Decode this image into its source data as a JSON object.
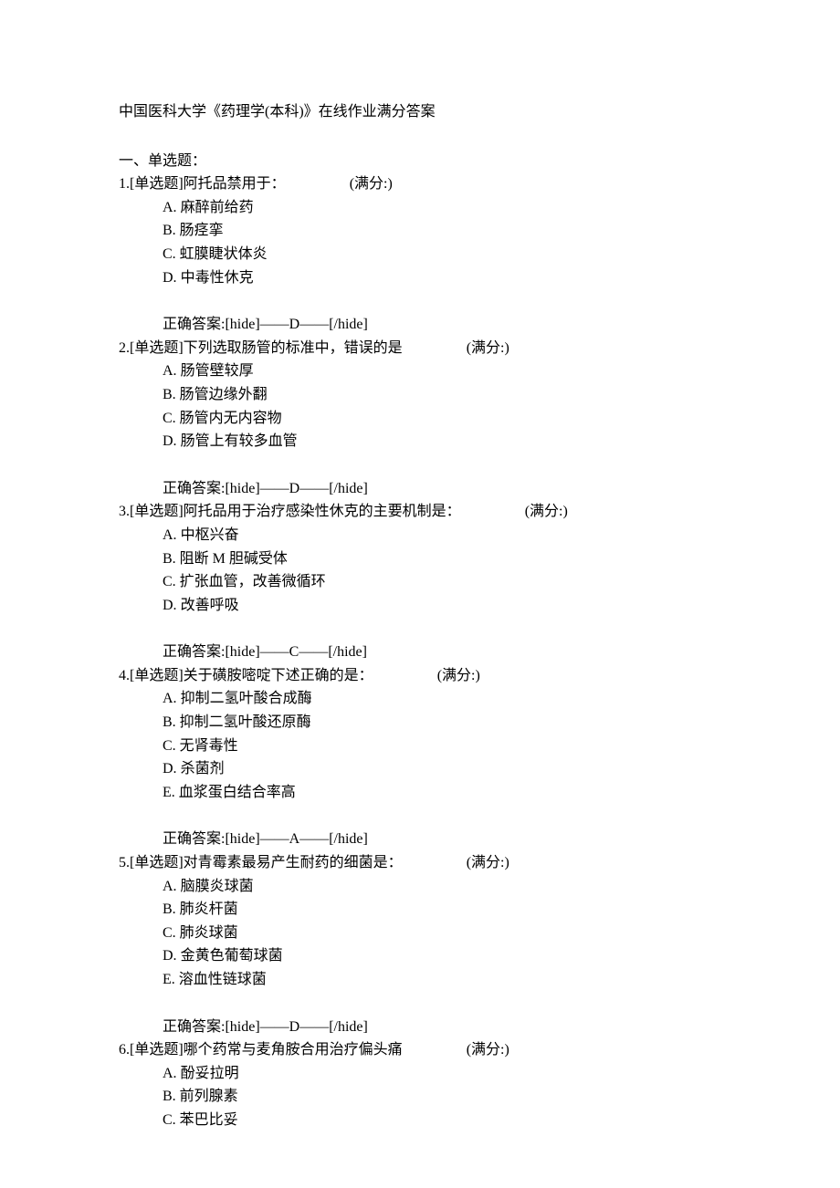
{
  "title": "中国医科大学《药理学(本科)》在线作业满分答案",
  "section_header": "一、单选题：",
  "questions": [
    {
      "number": "1",
      "type_label": "[单选题]",
      "text": "阿托品禁用于：",
      "score_label": "(满分:)",
      "options": [
        {
          "label": "A.",
          "text": "麻醉前给药"
        },
        {
          "label": "B.",
          "text": "肠痉挛"
        },
        {
          "label": "C.",
          "text": "虹膜睫状体炎"
        },
        {
          "label": "D.",
          "text": "中毒性休克"
        }
      ],
      "answer_label": "正确答案:[hide]——D——[/hide]"
    },
    {
      "number": "2",
      "type_label": "[单选题]",
      "text": "下列选取肠管的标准中，错误的是",
      "score_label": "(满分:)",
      "options": [
        {
          "label": "A.",
          "text": "肠管壁较厚"
        },
        {
          "label": "B.",
          "text": "肠管边缘外翻"
        },
        {
          "label": "C.",
          "text": "肠管内无内容物"
        },
        {
          "label": "D.",
          "text": "肠管上有较多血管"
        }
      ],
      "answer_label": "正确答案:[hide]——D——[/hide]"
    },
    {
      "number": "3",
      "type_label": "[单选题]",
      "text": "阿托品用于治疗感染性休克的主要机制是：",
      "score_label": "(满分:)",
      "options": [
        {
          "label": "A.",
          "text": "中枢兴奋"
        },
        {
          "label": "B.",
          "text": "阻断 M 胆碱受体"
        },
        {
          "label": "C.",
          "text": "扩张血管，改善微循环"
        },
        {
          "label": "D.",
          "text": "改善呼吸"
        }
      ],
      "answer_label": "正确答案:[hide]——C——[/hide]"
    },
    {
      "number": "4",
      "type_label": "[单选题]",
      "text": "关于磺胺嘧啶下述正确的是：",
      "score_label": "(满分:)",
      "options": [
        {
          "label": "A.",
          "text": "抑制二氢叶酸合成酶"
        },
        {
          "label": "B.",
          "text": "抑制二氢叶酸还原酶"
        },
        {
          "label": "C.",
          "text": "无肾毒性"
        },
        {
          "label": "D.",
          "text": "杀菌剂"
        },
        {
          "label": "E.",
          "text": "血浆蛋白结合率高"
        }
      ],
      "answer_label": "正确答案:[hide]——A——[/hide]"
    },
    {
      "number": "5",
      "type_label": "[单选题]",
      "text": "对青霉素最易产生耐药的细菌是：",
      "score_label": "(满分:)",
      "options": [
        {
          "label": "A.",
          "text": "脑膜炎球菌"
        },
        {
          "label": "B.",
          "text": "肺炎杆菌"
        },
        {
          "label": "C.",
          "text": "肺炎球菌"
        },
        {
          "label": "D.",
          "text": "金黄色葡萄球菌"
        },
        {
          "label": "E.",
          "text": "溶血性链球菌"
        }
      ],
      "answer_label": "正确答案:[hide]——D——[/hide]"
    },
    {
      "number": "6",
      "type_label": "[单选题]",
      "text": "哪个药常与麦角胺合用治疗偏头痛",
      "score_label": "(满分:)",
      "options": [
        {
          "label": "A.",
          "text": "酚妥拉明"
        },
        {
          "label": "B.",
          "text": "前列腺素"
        },
        {
          "label": "C.",
          "text": "苯巴比妥"
        }
      ],
      "answer_label": ""
    }
  ]
}
